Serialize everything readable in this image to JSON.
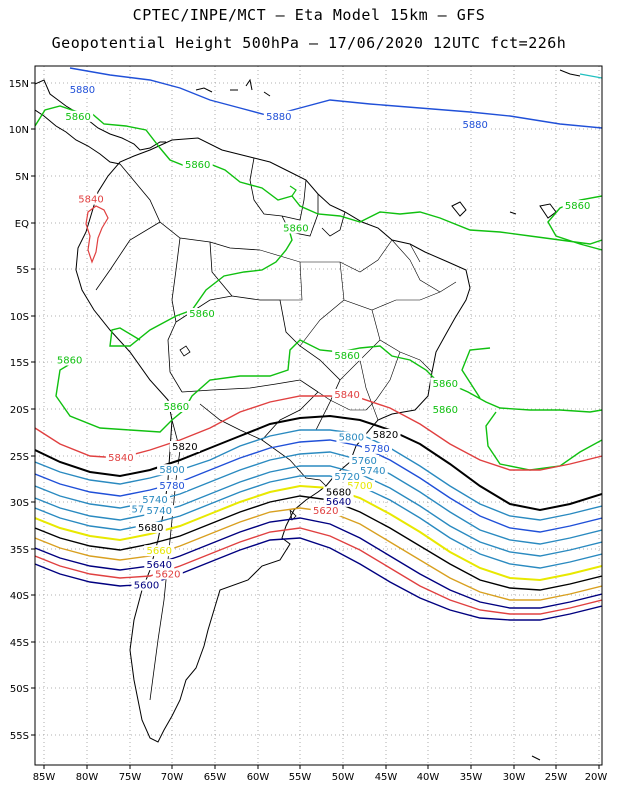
{
  "title_line1": "CPTEC/INPE/MCT –  Eta Model 15km – GFS",
  "title_line2": "Geopotential Height 500hPa – 17/06/2020 12UTC fct=226h",
  "lat_labels": [
    "15N",
    "10N",
    "5N",
    "EQ",
    "5S",
    "10S",
    "15S",
    "20S",
    "25S",
    "30S",
    "35S",
    "40S",
    "45S",
    "50S",
    "55S"
  ],
  "lon_labels": [
    "85W",
    "80W",
    "75W",
    "70W",
    "65W",
    "60W",
    "55W",
    "50W",
    "45W",
    "40W",
    "35W",
    "30W",
    "25W",
    "20W"
  ],
  "contour_labels": [
    {
      "text": "5880",
      "color": "#2050d8",
      "lon": -80.5,
      "lat": 14.1
    },
    {
      "text": "5880",
      "color": "#2050d8",
      "lon": -57.5,
      "lat": 11.2
    },
    {
      "text": "5880",
      "color": "#2050d8",
      "lon": -34.5,
      "lat": 10.3
    },
    {
      "text": "5860",
      "color": "#10c010",
      "lon": -81.0,
      "lat": 11.2
    },
    {
      "text": "5860",
      "color": "#10c010",
      "lon": -67.0,
      "lat": 6.0
    },
    {
      "text": "5860",
      "color": "#10c010",
      "lon": -55.5,
      "lat": -0.8
    },
    {
      "text": "5860",
      "color": "#10c010",
      "lon": -66.5,
      "lat": -10.0
    },
    {
      "text": "5860",
      "color": "#10c010",
      "lon": -82.0,
      "lat": -15.0
    },
    {
      "text": "5860",
      "color": "#10c010",
      "lon": -49.5,
      "lat": -14.5
    },
    {
      "text": "5860",
      "color": "#10c010",
      "lon": -69.5,
      "lat": -20.0
    },
    {
      "text": "5860",
      "color": "#10c010",
      "lon": -38.0,
      "lat": -17.5
    },
    {
      "text": "5860",
      "color": "#10c010",
      "lon": -38.0,
      "lat": -20.3
    },
    {
      "text": "5860",
      "color": "#10c010",
      "lon": -22.5,
      "lat": 1.6
    },
    {
      "text": "5840",
      "color": "#e04040",
      "lon": -79.5,
      "lat": 2.3
    },
    {
      "text": "5840",
      "color": "#e04040",
      "lon": -49.5,
      "lat": -18.7
    },
    {
      "text": "5840",
      "color": "#e04040",
      "lon": -76.0,
      "lat": -25.5
    },
    {
      "text": "5820",
      "color": "#000000",
      "lon": -68.5,
      "lat": -24.3
    },
    {
      "text": "5820",
      "color": "#000000",
      "lon": -45.0,
      "lat": -23.0
    },
    {
      "text": "5800",
      "color": "#2a8ac0",
      "lon": -49.0,
      "lat": -23.3
    },
    {
      "text": "5800",
      "color": "#2a8ac0",
      "lon": -70.0,
      "lat": -26.8
    },
    {
      "text": "5780",
      "color": "#2050d8",
      "lon": -46.0,
      "lat": -24.5
    },
    {
      "text": "5780",
      "color": "#2050d8",
      "lon": -70.0,
      "lat": -28.5
    },
    {
      "text": "5760",
      "color": "#2a8ac0",
      "lon": -47.5,
      "lat": -25.8
    },
    {
      "text": "5740",
      "color": "#2a8ac0",
      "lon": -72.0,
      "lat": -30.0
    },
    {
      "text": "5740",
      "color": "#2a8ac0",
      "lon": -46.5,
      "lat": -26.9
    },
    {
      "text": "5740",
      "color": "#2a8ac0",
      "lon": -71.5,
      "lat": -31.2
    },
    {
      "text": "5720",
      "color": "#2a8ac0",
      "lon": -49.5,
      "lat": -27.5
    },
    {
      "text": "57",
      "color": "#2a8ac0",
      "lon": -74.0,
      "lat": -31.0
    },
    {
      "text": "5700",
      "color": "#e8e800",
      "lon": -48.0,
      "lat": -28.5
    },
    {
      "text": "5680",
      "color": "#000000",
      "lon": -72.5,
      "lat": -33.0
    },
    {
      "text": "5680",
      "color": "#000000",
      "lon": -50.5,
      "lat": -29.2
    },
    {
      "text": "5660",
      "color": "#e8e800",
      "lon": -71.5,
      "lat": -35.5
    },
    {
      "text": "5640",
      "color": "#000080",
      "lon": -71.5,
      "lat": -37.0
    },
    {
      "text": "5640",
      "color": "#000080",
      "lon": -50.5,
      "lat": -30.2
    },
    {
      "text": "5620",
      "color": "#e04040",
      "lon": -70.5,
      "lat": -38.0
    },
    {
      "text": "5600",
      "color": "#000080",
      "lon": -73.0,
      "lat": -39.2
    },
    {
      "text": "5620",
      "color": "#e04040",
      "lon": -52.0,
      "lat": -31.2
    }
  ]
}
